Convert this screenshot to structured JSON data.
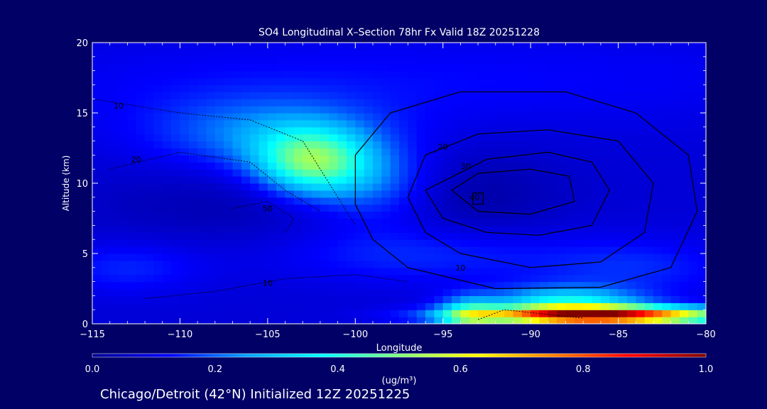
{
  "figure": {
    "title": "SO4 Longitudinal X–Section 78hr  Fx Valid 18Z 20251228",
    "footer": "Chicago/Detroit (42°N) Initialized 12Z 20251225",
    "colorbar_unit": "(ug/m³)"
  },
  "chart_data": {
    "type": "heatmap",
    "title": "SO4 Longitudinal X–Section 78hr  Fx Valid 18Z 20251228",
    "xlabel": "Longitude",
    "ylabel": "Altitude (km)",
    "xlim": [
      -115,
      -80
    ],
    "ylim": [
      0,
      20
    ],
    "x_ticks": [
      -115,
      -110,
      -105,
      -100,
      -95,
      -90,
      -85,
      -80
    ],
    "x_tick_labels": [
      "−115",
      "−110",
      "−105",
      "−100",
      "−95",
      "−90",
      "−85",
      "−80"
    ],
    "y_ticks": [
      0,
      5,
      10,
      15,
      20
    ],
    "y_tick_labels": [
      "0",
      "5",
      "10",
      "15",
      "20"
    ],
    "colorbar": {
      "label": "(ug/m³)",
      "range": [
        0.0,
        1.0
      ],
      "ticks": [
        0.0,
        0.2,
        0.4,
        0.6,
        0.8,
        1.0
      ],
      "tick_labels": [
        "0.0",
        "0.2",
        "0.4",
        "0.6",
        "0.8",
        "1.0"
      ],
      "colors": [
        "#00008f",
        "#0000ff",
        "#00a0ff",
        "#00ffff",
        "#7fff7f",
        "#ffff00",
        "#ff8000",
        "#ff0000",
        "#800000"
      ]
    },
    "field": {
      "base": 0.08,
      "features": [
        {
          "lon": -106,
          "alt": 17,
          "slon": 12,
          "salt": 2.5,
          "amp": 0.04
        },
        {
          "lon": -85,
          "alt": 17.5,
          "slon": 12,
          "salt": 2.5,
          "amp": 0.03
        },
        {
          "lon": -102.5,
          "alt": 11.5,
          "slon": 2.2,
          "salt": 1.6,
          "amp": 0.36
        },
        {
          "lon": -105,
          "alt": 13.5,
          "slon": 4.5,
          "salt": 1.8,
          "amp": 0.14
        },
        {
          "lon": -99,
          "alt": 10,
          "slon": 2.5,
          "salt": 2,
          "amp": 0.12
        },
        {
          "lon": -107,
          "alt": 8.5,
          "slon": 6,
          "salt": 2,
          "amp": -0.04
        },
        {
          "lon": -93,
          "alt": 9,
          "slon": 3.5,
          "salt": 2.5,
          "amp": -0.05
        },
        {
          "lon": -96,
          "alt": 5,
          "slon": 6,
          "salt": 1.5,
          "amp": 0.08
        },
        {
          "lon": -113,
          "alt": 4,
          "slon": 3,
          "salt": 1.3,
          "amp": 0.07
        },
        {
          "lon": -88,
          "alt": 1.5,
          "slon": 3,
          "salt": 0.8,
          "amp": 0.28
        },
        {
          "lon": -84,
          "alt": 4,
          "slon": 4,
          "salt": 1.4,
          "amp": 0.07
        },
        {
          "lon": -93.5,
          "alt": 0.6,
          "slon": 1.2,
          "salt": 0.9,
          "amp": 0.25
        },
        {
          "lon": -86,
          "alt": 0.6,
          "slon": 5,
          "salt": 0.45,
          "amp": 0.85
        }
      ]
    },
    "contours_solid": [
      {
        "label": "10",
        "label_pos": [
          -94,
          4
        ],
        "points": [
          [
            -100,
            8.5
          ],
          [
            -99,
            6
          ],
          [
            -97,
            4
          ],
          [
            -92,
            2.5
          ],
          [
            -86,
            2.6
          ],
          [
            -82,
            4
          ],
          [
            -80.5,
            8
          ],
          [
            -81,
            12
          ],
          [
            -84,
            15
          ],
          [
            -88,
            16.5
          ],
          [
            -94,
            16.5
          ],
          [
            -98,
            15
          ],
          [
            -100,
            12
          ]
        ]
      },
      {
        "label": "20",
        "label_pos": [
          -95,
          12.6
        ],
        "points": [
          [
            -97,
            9
          ],
          [
            -96,
            6.5
          ],
          [
            -94,
            5
          ],
          [
            -90,
            4
          ],
          [
            -86,
            4.4
          ],
          [
            -83.5,
            6.5
          ],
          [
            -83,
            10
          ],
          [
            -85,
            13
          ],
          [
            -89,
            13.8
          ],
          [
            -93,
            13.5
          ],
          [
            -96,
            12
          ]
        ]
      },
      {
        "label": "30",
        "label_pos": [
          -93.7,
          11.2
        ],
        "points": [
          [
            -96,
            9.5
          ],
          [
            -95,
            7.5
          ],
          [
            -92.5,
            6.5
          ],
          [
            -89.5,
            6.3
          ],
          [
            -86.5,
            7
          ],
          [
            -85.5,
            9.5
          ],
          [
            -86.5,
            11.5
          ],
          [
            -89,
            12.2
          ],
          [
            -92.5,
            11.7
          ]
        ]
      },
      {
        "label": "40",
        "label_pos": [
          -93.2,
          9
        ],
        "points": [
          [
            -94.5,
            9.5
          ],
          [
            -93,
            8
          ],
          [
            -90,
            7.8
          ],
          [
            -87.5,
            8.7
          ],
          [
            -87.8,
            10.5
          ],
          [
            -90,
            11
          ],
          [
            -93,
            10.7
          ]
        ]
      },
      {
        "label": "",
        "label_pos": null,
        "points": [
          [
            -93.3,
            9.3
          ],
          [
            -92.7,
            9.3
          ],
          [
            -92.7,
            8.5
          ],
          [
            -93.3,
            8.5
          ]
        ]
      }
    ],
    "contours_dashed": [
      {
        "label": "10",
        "label_pos": [
          -113.5,
          15.5
        ],
        "points": [
          [
            -115,
            16
          ],
          [
            -110,
            15
          ],
          [
            -106,
            14.5
          ],
          [
            -103,
            13
          ],
          [
            -101.5,
            10
          ],
          [
            -100,
            7
          ]
        ]
      },
      {
        "label": "20",
        "label_pos": [
          -112.5,
          11.7
        ],
        "points": [
          [
            -114,
            11
          ],
          [
            -110,
            12.2
          ],
          [
            -106,
            11.5
          ],
          [
            -104,
            9.5
          ],
          [
            -102,
            8
          ]
        ]
      },
      {
        "label": "50",
        "label_pos": [
          -105,
          8.2
        ],
        "points": [
          [
            -107,
            8.2
          ],
          [
            -105,
            8.7
          ],
          [
            -103.5,
            7.5
          ],
          [
            -104,
            6.5
          ]
        ]
      },
      {
        "label": "10",
        "label_pos": [
          -105,
          2.9
        ],
        "points": [
          [
            -112,
            1.8
          ],
          [
            -108,
            2.3
          ],
          [
            -104,
            3.2
          ],
          [
            -100,
            3.5
          ],
          [
            -97,
            3
          ]
        ]
      },
      {
        "label": "",
        "label_pos": null,
        "points": [
          [
            -93,
            0.3
          ],
          [
            -91.5,
            1
          ],
          [
            -90,
            0.8
          ],
          [
            -87,
            0.4
          ]
        ]
      }
    ]
  }
}
